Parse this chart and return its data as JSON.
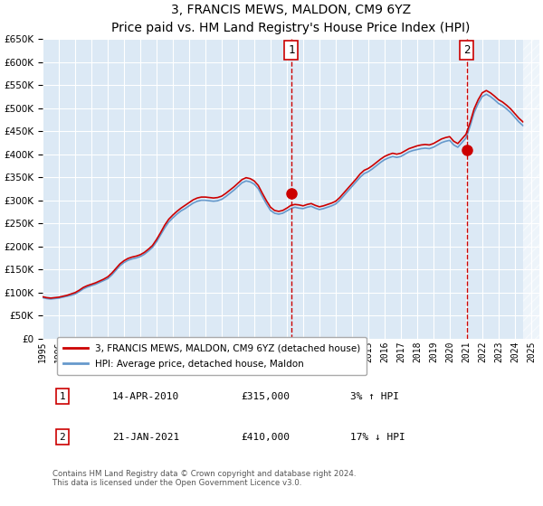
{
  "title": "3, FRANCIS MEWS, MALDON, CM9 6YZ",
  "subtitle": "Price paid vs. HM Land Registry's House Price Index (HPI)",
  "ylabel_values": [
    "£0",
    "£50K",
    "£100K",
    "£150K",
    "£200K",
    "£250K",
    "£300K",
    "£350K",
    "£400K",
    "£450K",
    "£500K",
    "£550K",
    "£600K",
    "£650K"
  ],
  "ylim": [
    0,
    650000
  ],
  "yticks": [
    0,
    50000,
    100000,
    150000,
    200000,
    250000,
    300000,
    350000,
    400000,
    450000,
    500000,
    550000,
    600000,
    650000
  ],
  "xlim_start": 1995.0,
  "xlim_end": 2025.5,
  "bg_color": "#dce9f5",
  "plot_bg": "#dce9f5",
  "grid_color": "#ffffff",
  "line_color_red": "#cc0000",
  "line_color_blue": "#6699cc",
  "transaction1_x": 2010.28,
  "transaction1_y": 315000,
  "transaction1_label": "1",
  "transaction1_date": "14-APR-2010",
  "transaction1_price": "£315,000",
  "transaction1_hpi": "3% ↑ HPI",
  "transaction2_x": 2021.05,
  "transaction2_y": 410000,
  "transaction2_label": "2",
  "transaction2_date": "21-JAN-2021",
  "transaction2_price": "£410,000",
  "transaction2_hpi": "17% ↓ HPI",
  "legend_line1": "3, FRANCIS MEWS, MALDON, CM9 6YZ (detached house)",
  "legend_line2": "HPI: Average price, detached house, Maldon",
  "footer": "Contains HM Land Registry data © Crown copyright and database right 2024.\nThis data is licensed under the Open Government Licence v3.0.",
  "hpi_data_x": [
    1995.0,
    1995.25,
    1995.5,
    1995.75,
    1996.0,
    1996.25,
    1996.5,
    1996.75,
    1997.0,
    1997.25,
    1997.5,
    1997.75,
    1998.0,
    1998.25,
    1998.5,
    1998.75,
    1999.0,
    1999.25,
    1999.5,
    1999.75,
    2000.0,
    2000.25,
    2000.5,
    2000.75,
    2001.0,
    2001.25,
    2001.5,
    2001.75,
    2002.0,
    2002.25,
    2002.5,
    2002.75,
    2003.0,
    2003.25,
    2003.5,
    2003.75,
    2004.0,
    2004.25,
    2004.5,
    2004.75,
    2005.0,
    2005.25,
    2005.5,
    2005.75,
    2006.0,
    2006.25,
    2006.5,
    2006.75,
    2007.0,
    2007.25,
    2007.5,
    2007.75,
    2008.0,
    2008.25,
    2008.5,
    2008.75,
    2009.0,
    2009.25,
    2009.5,
    2009.75,
    2010.0,
    2010.25,
    2010.5,
    2010.75,
    2011.0,
    2011.25,
    2011.5,
    2011.75,
    2012.0,
    2012.25,
    2012.5,
    2012.75,
    2013.0,
    2013.25,
    2013.5,
    2013.75,
    2014.0,
    2014.25,
    2014.5,
    2014.75,
    2015.0,
    2015.25,
    2015.5,
    2015.75,
    2016.0,
    2016.25,
    2016.5,
    2016.75,
    2017.0,
    2017.25,
    2017.5,
    2017.75,
    2018.0,
    2018.25,
    2018.5,
    2018.75,
    2019.0,
    2019.25,
    2019.5,
    2019.75,
    2020.0,
    2020.25,
    2020.5,
    2020.75,
    2021.0,
    2021.25,
    2021.5,
    2021.75,
    2022.0,
    2022.25,
    2022.5,
    2022.75,
    2023.0,
    2023.25,
    2023.5,
    2023.75,
    2024.0,
    2024.25,
    2024.5
  ],
  "hpi_data_y": [
    89000,
    87000,
    86000,
    87000,
    88000,
    90000,
    92000,
    94000,
    97000,
    102000,
    108000,
    112000,
    115000,
    118000,
    122000,
    126000,
    130000,
    138000,
    148000,
    158000,
    165000,
    170000,
    173000,
    175000,
    178000,
    183000,
    190000,
    198000,
    210000,
    225000,
    240000,
    253000,
    262000,
    270000,
    277000,
    282000,
    288000,
    294000,
    298000,
    300000,
    300000,
    299000,
    298000,
    299000,
    302000,
    308000,
    315000,
    322000,
    330000,
    338000,
    342000,
    340000,
    335000,
    325000,
    308000,
    292000,
    278000,
    272000,
    270000,
    272000,
    277000,
    282000,
    285000,
    283000,
    282000,
    285000,
    287000,
    283000,
    280000,
    282000,
    285000,
    288000,
    292000,
    300000,
    310000,
    320000,
    330000,
    340000,
    350000,
    358000,
    362000,
    368000,
    375000,
    382000,
    388000,
    392000,
    395000,
    393000,
    395000,
    400000,
    405000,
    408000,
    410000,
    412000,
    413000,
    412000,
    415000,
    420000,
    425000,
    428000,
    430000,
    420000,
    415000,
    425000,
    435000,
    460000,
    490000,
    510000,
    525000,
    530000,
    525000,
    518000,
    510000,
    505000,
    498000,
    490000,
    480000,
    470000,
    462000
  ],
  "price_data_x": [
    1995.0,
    1995.25,
    1995.5,
    1995.75,
    1996.0,
    1996.25,
    1996.5,
    1996.75,
    1997.0,
    1997.25,
    1997.5,
    1997.75,
    1998.0,
    1998.25,
    1998.5,
    1998.75,
    1999.0,
    1999.25,
    1999.5,
    1999.75,
    2000.0,
    2000.25,
    2000.5,
    2000.75,
    2001.0,
    2001.25,
    2001.5,
    2001.75,
    2002.0,
    2002.25,
    2002.5,
    2002.75,
    2003.0,
    2003.25,
    2003.5,
    2003.75,
    2004.0,
    2004.25,
    2004.5,
    2004.75,
    2005.0,
    2005.25,
    2005.5,
    2005.75,
    2006.0,
    2006.25,
    2006.5,
    2006.75,
    2007.0,
    2007.25,
    2007.5,
    2007.75,
    2008.0,
    2008.25,
    2008.5,
    2008.75,
    2009.0,
    2009.25,
    2009.5,
    2009.75,
    2010.0,
    2010.25,
    2010.5,
    2010.75,
    2011.0,
    2011.25,
    2011.5,
    2011.75,
    2012.0,
    2012.25,
    2012.5,
    2012.75,
    2013.0,
    2013.25,
    2013.5,
    2013.75,
    2014.0,
    2014.25,
    2014.5,
    2014.75,
    2015.0,
    2015.25,
    2015.5,
    2015.75,
    2016.0,
    2016.25,
    2016.5,
    2016.75,
    2017.0,
    2017.25,
    2017.5,
    2017.75,
    2018.0,
    2018.25,
    2018.5,
    2018.75,
    2019.0,
    2019.25,
    2019.5,
    2019.75,
    2020.0,
    2020.25,
    2020.5,
    2020.75,
    2021.0,
    2021.25,
    2021.5,
    2021.75,
    2022.0,
    2022.25,
    2022.5,
    2022.75,
    2023.0,
    2023.25,
    2023.5,
    2023.75,
    2024.0,
    2024.25,
    2024.5
  ],
  "price_data_y": [
    91000,
    89000,
    88000,
    89000,
    90000,
    92000,
    94000,
    97000,
    100000,
    105000,
    111000,
    115000,
    118000,
    121000,
    125000,
    129000,
    134000,
    142000,
    152000,
    162000,
    169000,
    174000,
    177000,
    179000,
    182000,
    187000,
    194000,
    202000,
    215000,
    230000,
    246000,
    259000,
    268000,
    276000,
    283000,
    289000,
    295000,
    301000,
    305000,
    307000,
    307000,
    306000,
    305000,
    306000,
    309000,
    315000,
    322000,
    329000,
    337000,
    345000,
    349000,
    347000,
    342000,
    332000,
    315000,
    299000,
    285000,
    278000,
    276000,
    278000,
    283000,
    289000,
    291000,
    290000,
    288000,
    291000,
    293000,
    289000,
    286000,
    288000,
    291000,
    294000,
    298000,
    306000,
    316000,
    326000,
    336000,
    346000,
    357000,
    365000,
    369000,
    375000,
    382000,
    389000,
    395000,
    399000,
    402000,
    400000,
    402000,
    407000,
    412000,
    415000,
    418000,
    420000,
    421000,
    420000,
    423000,
    428000,
    433000,
    436000,
    438000,
    428000,
    423000,
    433000,
    443000,
    468000,
    498000,
    518000,
    533000,
    538000,
    533000,
    526000,
    518000,
    513000,
    506000,
    498000,
    488000,
    478000,
    470000
  ]
}
